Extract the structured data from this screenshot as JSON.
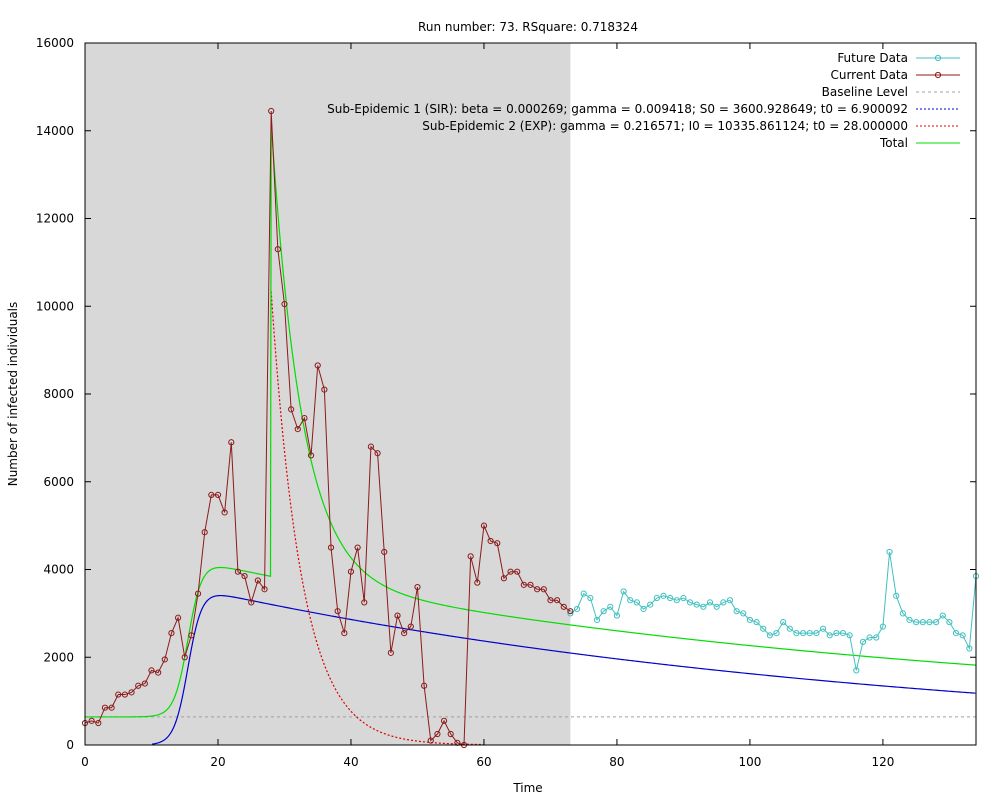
{
  "chart_data": {
    "type": "line",
    "title": "Run number: 73. RSquare: 0.718324",
    "xlabel": "Time",
    "ylabel": "Number of infected individuals",
    "xlim": [
      0,
      134
    ],
    "ylim": [
      0,
      16000
    ],
    "x_ticks": [
      0,
      20,
      40,
      60,
      80,
      100,
      120
    ],
    "y_ticks": [
      0,
      2000,
      4000,
      6000,
      8000,
      10000,
      12000,
      14000,
      16000
    ],
    "shaded_region": [
      0,
      73
    ],
    "legend_position": "top-right",
    "colors": {
      "future": "#40c0c0",
      "current": "#8b1a1a",
      "baseline": "#a0a0a0",
      "sir": "#0000cc",
      "exp": "#dd0000",
      "total": "#00dd00",
      "shade": "#d8d8d8"
    },
    "series": [
      {
        "name": "Future Data",
        "key": "future",
        "x": [
          73,
          74,
          75,
          76,
          77,
          78,
          79,
          80,
          81,
          82,
          83,
          84,
          85,
          86,
          87,
          88,
          89,
          90,
          91,
          92,
          93,
          94,
          95,
          96,
          97,
          98,
          99,
          100,
          101,
          102,
          103,
          104,
          105,
          106,
          107,
          108,
          109,
          110,
          111,
          112,
          113,
          114,
          115,
          116,
          117,
          118,
          119,
          120,
          121,
          122,
          123,
          124,
          125,
          126,
          127,
          128,
          129,
          130,
          131,
          132,
          133,
          134
        ],
        "y": [
          3000,
          3100,
          3450,
          3350,
          2850,
          3050,
          3150,
          2950,
          3500,
          3300,
          3250,
          3100,
          3200,
          3350,
          3400,
          3350,
          3300,
          3350,
          3250,
          3200,
          3150,
          3250,
          3150,
          3250,
          3300,
          3050,
          3000,
          2850,
          2800,
          2650,
          2500,
          2550,
          2800,
          2650,
          2550,
          2550,
          2550,
          2550,
          2650,
          2500,
          2550,
          2550,
          2500,
          1700,
          2350,
          2450,
          2450,
          2700,
          4400,
          3400,
          3000,
          2850,
          2800,
          2800,
          2800,
          2800,
          2950,
          2800,
          2550,
          2500,
          2200,
          3850
        ]
      },
      {
        "name": "Current Data",
        "key": "current",
        "x": [
          0,
          1,
          2,
          3,
          4,
          5,
          6,
          7,
          8,
          9,
          10,
          11,
          12,
          13,
          14,
          15,
          16,
          17,
          18,
          19,
          20,
          21,
          22,
          23,
          24,
          25,
          26,
          27,
          28,
          29,
          30,
          31,
          32,
          33,
          34,
          35,
          36,
          37,
          38,
          39,
          40,
          41,
          42,
          43,
          44,
          45,
          46,
          47,
          48,
          49,
          50,
          51,
          52,
          53,
          54,
          55,
          56,
          57,
          58,
          59,
          60,
          61,
          62,
          63,
          64,
          65,
          66,
          67,
          68,
          69,
          70,
          71,
          72,
          73
        ],
        "y": [
          500,
          550,
          500,
          850,
          850,
          1150,
          1150,
          1200,
          1350,
          1400,
          1700,
          1650,
          1950,
          2550,
          2900,
          2000,
          2500,
          3450,
          4850,
          5700,
          5700,
          5300,
          6900,
          3950,
          3850,
          3250,
          3750,
          3550,
          14450,
          11300,
          10050,
          7650,
          7200,
          7450,
          6600,
          8650,
          8100,
          4500,
          3050,
          2550,
          3950,
          4500,
          3250,
          6800,
          6650,
          4400,
          2100,
          2950,
          2550,
          2700,
          3600,
          1350,
          100,
          250,
          550,
          250,
          50,
          0,
          4300,
          3700,
          5000,
          4650,
          4600,
          3800,
          3950,
          3950,
          3650,
          3650,
          3550,
          3550,
          3300,
          3300,
          3150,
          3050
        ]
      }
    ],
    "model_curves": [
      {
        "name": "Baseline Level",
        "key": "baseline",
        "style": "dotted",
        "value": 640
      },
      {
        "name": "Sub-Epidemic 1 (SIR): beta = 0.000269; gamma = 0.009418; S0 = 3600.928649; t0 = 6.900092",
        "key": "sir",
        "style": "dotted",
        "params": {
          "beta": 0.000269,
          "gamma": 0.009418,
          "S0": 3600.928649,
          "t0": 6.900092
        }
      },
      {
        "name": "Sub-Epidemic 2 (EXP): gamma = 0.216571; I0 = 10335.861124; t0 = 28.000000",
        "key": "exp",
        "style": "dotted",
        "params": {
          "gamma": 0.216571,
          "I0": 10335.861124,
          "t0": 28.0
        }
      },
      {
        "name": "Total",
        "key": "total",
        "style": "solid"
      }
    ]
  }
}
